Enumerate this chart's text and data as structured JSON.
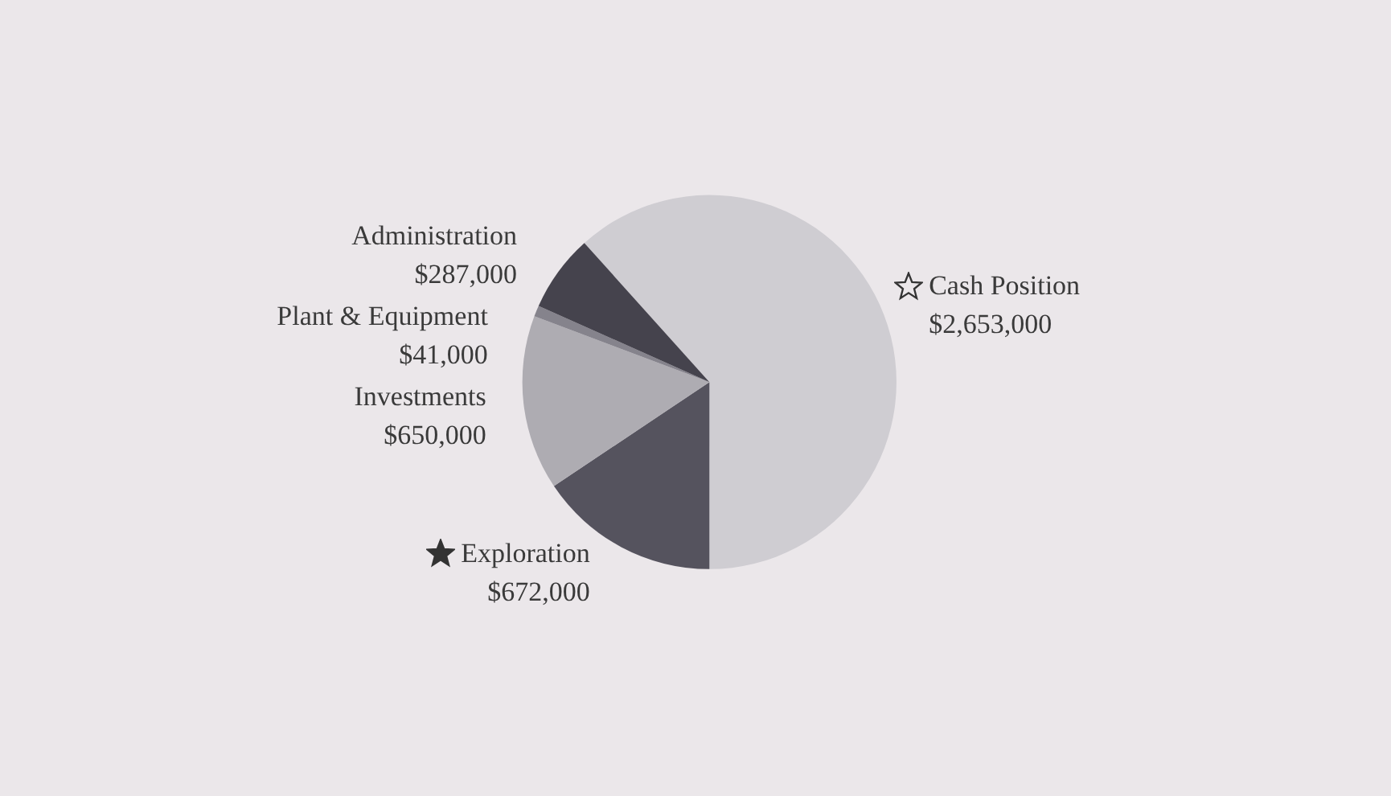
{
  "chart_data": {
    "type": "pie",
    "categories": [
      "Cash Position",
      "Exploration",
      "Investments",
      "Plant & Equipment",
      "Administration"
    ],
    "values": [
      2653000,
      672000,
      650000,
      41000,
      287000
    ],
    "value_labels": [
      "$2,653,000",
      "$672,000",
      "$650,000",
      "$41,000",
      "$287,000"
    ],
    "colors": [
      "#cfcdd2",
      "#55535e",
      "#aeacb2",
      "#85838c",
      "#45434d"
    ],
    "legend": false
  }
}
